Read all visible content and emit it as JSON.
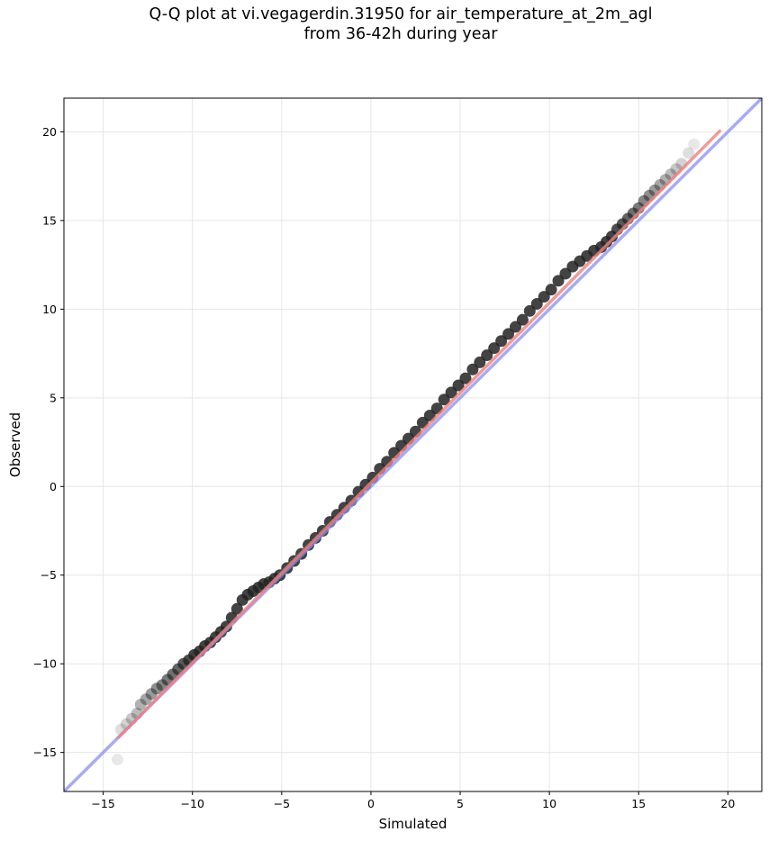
{
  "chart_data": {
    "type": "scatter",
    "title": [
      "Q-Q plot at vi.vegagerdin.31950 for air_temperature_at_2m_agl",
      "from 36-42h during year"
    ],
    "xlabel": "Simulated",
    "ylabel": "Observed",
    "xlim": [
      -17.2,
      21.9
    ],
    "ylim": [
      -17.2,
      21.9
    ],
    "x_ticks": [
      -15,
      -10,
      -5,
      0,
      5,
      10,
      15,
      20
    ],
    "y_ticks": [
      -15,
      -10,
      -5,
      0,
      5,
      10,
      15,
      20
    ],
    "x_tick_labels": [
      "−15",
      "−10",
      "−5",
      "0",
      "5",
      "10",
      "15",
      "20"
    ],
    "y_tick_labels": [
      "−15",
      "−10",
      "−5",
      "0",
      "5",
      "10",
      "15",
      "20"
    ],
    "grid": true,
    "legend": "none",
    "series": [
      {
        "kind": "quantile points",
        "color": "#000000",
        "x": [
          -14.2,
          -14.0,
          -13.7,
          -13.4,
          -13.1,
          -12.9,
          -12.6,
          -12.3,
          -12.0,
          -11.7,
          -11.4,
          -11.1,
          -10.8,
          -10.5,
          -10.2,
          -9.9,
          -9.6,
          -9.3,
          -9.0,
          -8.7,
          -8.4,
          -8.1,
          -7.8,
          -7.5,
          -7.2,
          -6.9,
          -6.6,
          -6.3,
          -6.0,
          -5.7,
          -5.4,
          -5.1,
          -4.7,
          -4.3,
          -3.9,
          -3.5,
          -3.1,
          -2.7,
          -2.3,
          -1.9,
          -1.5,
          -1.1,
          -0.7,
          -0.3,
          0.1,
          0.5,
          0.9,
          1.3,
          1.7,
          2.1,
          2.5,
          2.9,
          3.3,
          3.7,
          4.1,
          4.5,
          4.9,
          5.3,
          5.7,
          6.1,
          6.5,
          6.9,
          7.3,
          7.7,
          8.1,
          8.5,
          8.9,
          9.3,
          9.7,
          10.1,
          10.5,
          10.9,
          11.3,
          11.7,
          12.1,
          12.5,
          12.9,
          13.2,
          13.5,
          13.8,
          14.1,
          14.4,
          14.7,
          15.0,
          15.3,
          15.6,
          15.9,
          16.2,
          16.5,
          16.8,
          17.1,
          17.4,
          17.8,
          18.1
        ],
        "y": [
          -15.4,
          -13.7,
          -13.4,
          -13.1,
          -12.8,
          -12.3,
          -12.0,
          -11.7,
          -11.4,
          -11.2,
          -10.9,
          -10.6,
          -10.3,
          -10.0,
          -9.8,
          -9.5,
          -9.3,
          -9.0,
          -8.8,
          -8.5,
          -8.2,
          -7.9,
          -7.4,
          -6.9,
          -6.4,
          -6.1,
          -5.9,
          -5.7,
          -5.5,
          -5.4,
          -5.2,
          -5.0,
          -4.6,
          -4.2,
          -3.8,
          -3.3,
          -2.9,
          -2.5,
          -2.0,
          -1.6,
          -1.2,
          -0.8,
          -0.3,
          0.1,
          0.5,
          1.0,
          1.4,
          1.9,
          2.3,
          2.7,
          3.1,
          3.6,
          4.0,
          4.4,
          4.9,
          5.3,
          5.7,
          6.1,
          6.6,
          7.0,
          7.4,
          7.8,
          8.2,
          8.6,
          9.0,
          9.4,
          9.9,
          10.3,
          10.7,
          11.1,
          11.6,
          12.0,
          12.4,
          12.7,
          13.0,
          13.3,
          13.5,
          13.8,
          14.1,
          14.5,
          14.8,
          15.1,
          15.4,
          15.7,
          16.1,
          16.4,
          16.7,
          17.0,
          17.3,
          17.6,
          17.9,
          18.2,
          18.8,
          19.3
        ]
      },
      {
        "kind": "fit line",
        "color": "#f08080",
        "x": [
          -14.2,
          19.6
        ],
        "y": [
          -14.2,
          20.1
        ]
      },
      {
        "kind": "identity line",
        "color": "#8890ee",
        "x": [
          -17.2,
          21.9
        ],
        "y": [
          -17.2,
          21.9
        ]
      }
    ]
  }
}
